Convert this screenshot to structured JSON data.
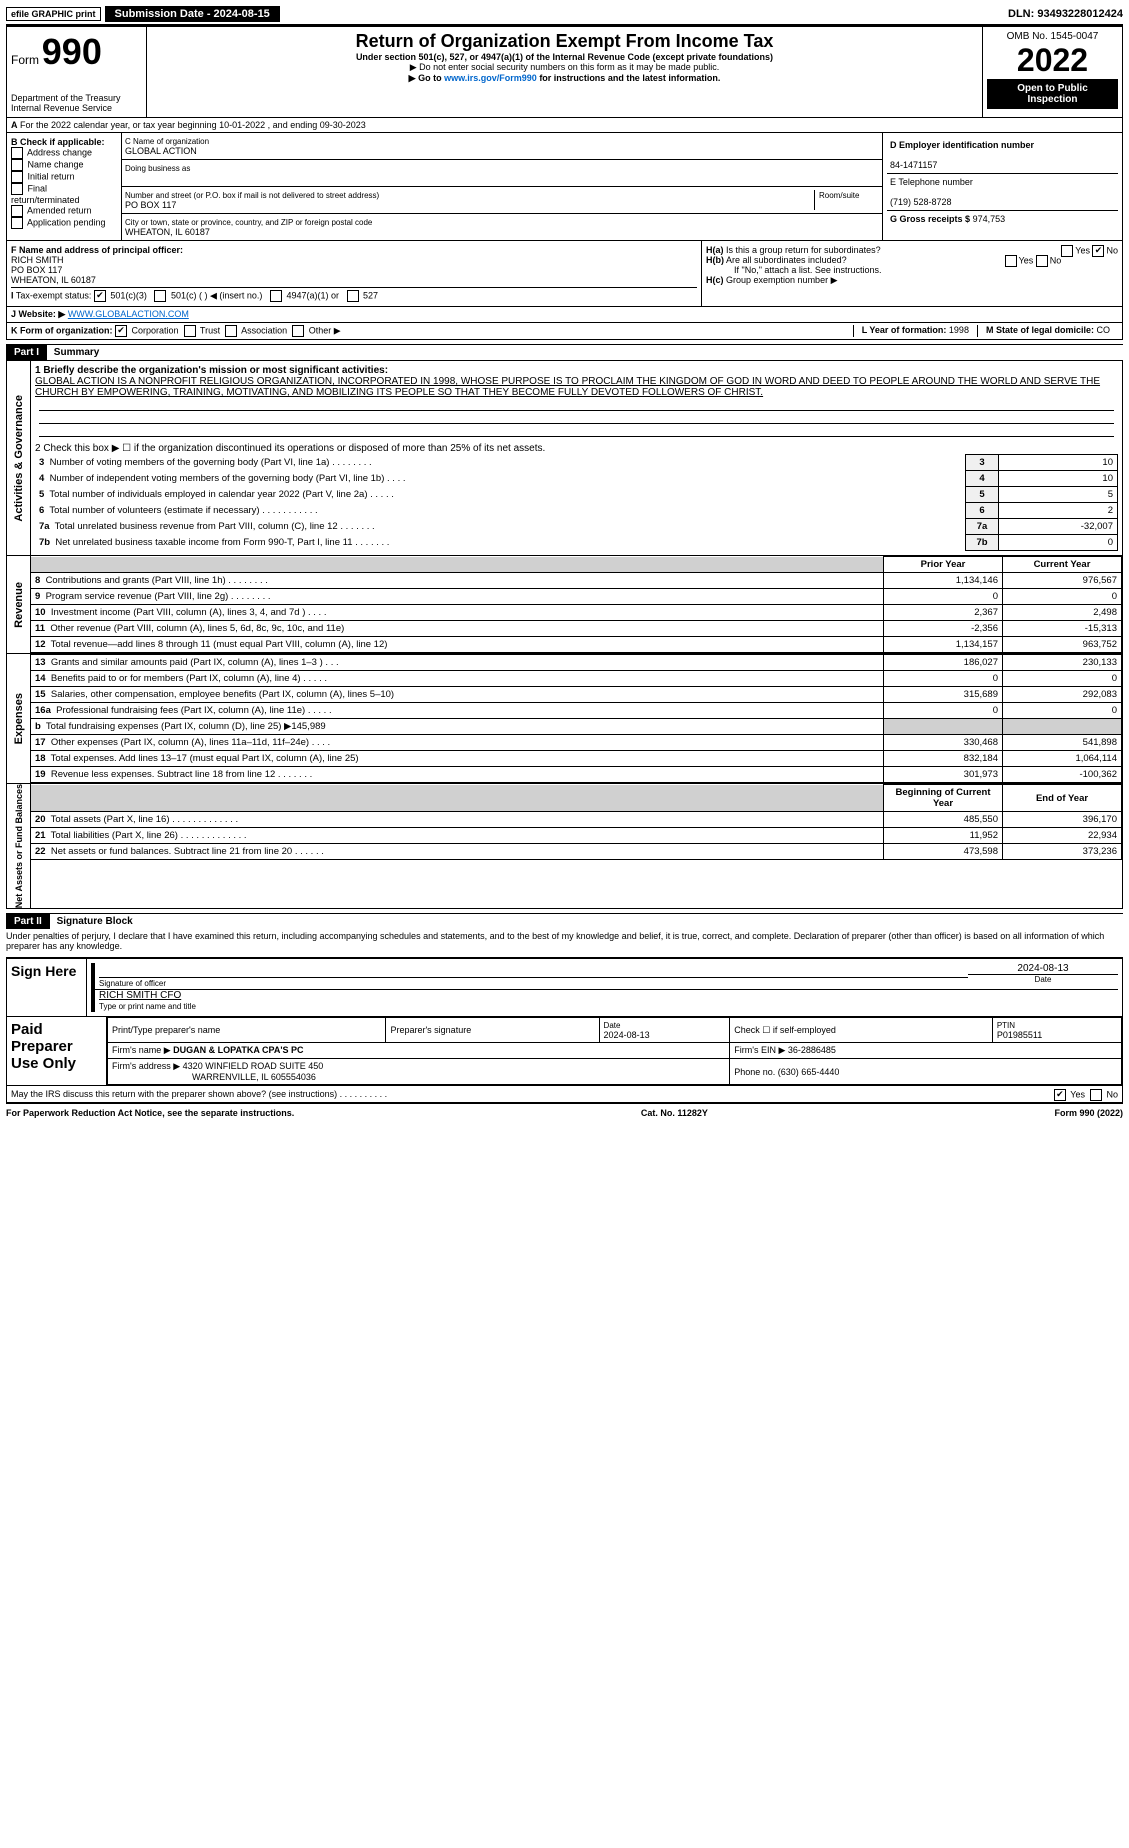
{
  "topbar": {
    "efile": "efile GRAPHIC print",
    "subdate_label": "Submission Date - 2024-08-15",
    "dln": "DLN: 93493228012424"
  },
  "header": {
    "form_prefix": "Form",
    "form_num": "990",
    "dept": "Department of the Treasury",
    "irs": "Internal Revenue Service",
    "title": "Return of Organization Exempt From Income Tax",
    "subtitle": "Under section 501(c), 527, or 4947(a)(1) of the Internal Revenue Code (except private foundations)",
    "note1": "▶ Do not enter social security numbers on this form as it may be made public.",
    "note2_pre": "▶ Go to ",
    "note2_link": "www.irs.gov/Form990",
    "note2_post": " for instructions and the latest information.",
    "omb": "OMB No. 1545-0047",
    "year": "2022",
    "open": "Open to Public Inspection"
  },
  "a": {
    "text": "For the 2022 calendar year, or tax year beginning 10-01-2022    , and ending 09-30-2023"
  },
  "b": {
    "label": "B Check if applicable:",
    "opts": [
      "Address change",
      "Name change",
      "Initial return",
      "Final return/terminated",
      "Amended return",
      "Application pending"
    ]
  },
  "c": {
    "label": "C Name of organization",
    "name": "GLOBAL ACTION",
    "dba_label": "Doing business as",
    "dba": "",
    "addr_label": "Number and street (or P.O. box if mail is not delivered to street address)",
    "room": "Room/suite",
    "addr": "PO BOX 117",
    "city_label": "City or town, state or province, country, and ZIP or foreign postal code",
    "city": "WHEATON, IL  60187"
  },
  "d": {
    "label": "D Employer identification number",
    "val": "84-1471157"
  },
  "e": {
    "label": "E Telephone number",
    "val": "(719) 528-8728"
  },
  "g": {
    "label": "G Gross receipts $",
    "val": "974,753"
  },
  "f": {
    "label": "F Name and address of principal officer:",
    "name": "RICH SMITH",
    "addr1": "PO BOX 117",
    "addr2": "WHEATON, IL  60187"
  },
  "h": {
    "a": "Is this a group return for subordinates?",
    "b": "Are all subordinates included?",
    "bno": "If \"No,\" attach a list. See instructions.",
    "c": "Group exemption number ▶",
    "yes": "Yes",
    "no": "No"
  },
  "i": {
    "label": "Tax-exempt status:",
    "opts": [
      "501(c)(3)",
      "501(c) (  ) ◀ (insert no.)",
      "4947(a)(1) or",
      "527"
    ]
  },
  "j": {
    "label": "Website: ▶",
    "val": "WWW.GLOBALACTION.COM"
  },
  "k": {
    "label": "K Form of organization:",
    "opts": [
      "Corporation",
      "Trust",
      "Association",
      "Other ▶"
    ]
  },
  "l": {
    "label": "L Year of formation:",
    "val": "1998"
  },
  "m": {
    "label": "M State of legal domicile:",
    "val": "CO"
  },
  "part1": {
    "num": "Part I",
    "title": "Summary"
  },
  "mission": {
    "label": "1  Briefly describe the organization's mission or most significant activities:",
    "text": "GLOBAL ACTION IS A NONPROFIT RELIGIOUS ORGANIZATION, INCORPORATED IN 1998, WHOSE PURPOSE IS TO PROCLAIM THE KINGDOM OF GOD IN WORD AND DEED TO PEOPLE AROUND THE WORLD AND SERVE THE CHURCH BY EMPOWERING, TRAINING, MOTIVATING, AND MOBILIZING ITS PEOPLE SO THAT THEY BECOME FULLY DEVOTED FOLLOWERS OF CHRIST."
  },
  "line2": "2  Check this box ▶ ☐  if the organization discontinued its operations or disposed of more than 25% of its net assets.",
  "gov": {
    "vlabel": "Activities & Governance",
    "rows": [
      {
        "n": "3",
        "t": "Number of voting members of the governing body (Part VI, line 1a)   .    .    .    .    .    .    .    .",
        "v": "10"
      },
      {
        "n": "4",
        "t": "Number of independent voting members of the governing body (Part VI, line 1b)   .    .    .    .",
        "v": "10"
      },
      {
        "n": "5",
        "t": "Total number of individuals employed in calendar year 2022 (Part V, line 2a)   .    .    .    .    .",
        "v": "5"
      },
      {
        "n": "6",
        "t": "Total number of volunteers (estimate if necessary)    .    .    .    .    .    .    .    .    .    .    .",
        "v": "2"
      },
      {
        "n": "7a",
        "t": "Total unrelated business revenue from Part VIII, column (C), line 12   .    .    .    .    .    .    .",
        "v": "-32,007"
      },
      {
        "n": "7b",
        "t": "Net unrelated business taxable income from Form 990-T, Part I, line 11   .    .    .    .    .    .    .",
        "v": "0"
      }
    ]
  },
  "rev": {
    "vlabel": "Revenue",
    "h1": "Prior Year",
    "h2": "Current Year",
    "rows": [
      {
        "n": "8",
        "t": "Contributions and grants (Part VIII, line 1h)   .    .    .    .    .    .    .    .",
        "p": "1,134,146",
        "c": "976,567"
      },
      {
        "n": "9",
        "t": "Program service revenue (Part VIII, line 2g)   .    .    .    .    .    .    .    .",
        "p": "0",
        "c": "0"
      },
      {
        "n": "10",
        "t": "Investment income (Part VIII, column (A), lines 3, 4, and 7d )   .    .    .    .",
        "p": "2,367",
        "c": "2,498"
      },
      {
        "n": "11",
        "t": "Other revenue (Part VIII, column (A), lines 5, 6d, 8c, 9c, 10c, and 11e)",
        "p": "-2,356",
        "c": "-15,313"
      },
      {
        "n": "12",
        "t": "Total revenue—add lines 8 through 11 (must equal Part VIII, column (A), line 12)",
        "p": "1,134,157",
        "c": "963,752"
      }
    ]
  },
  "exp": {
    "vlabel": "Expenses",
    "rows": [
      {
        "n": "13",
        "t": "Grants and similar amounts paid (Part IX, column (A), lines 1–3 )   .    .    .",
        "p": "186,027",
        "c": "230,133"
      },
      {
        "n": "14",
        "t": "Benefits paid to or for members (Part IX, column (A), line 4)   .    .    .    .    .",
        "p": "0",
        "c": "0"
      },
      {
        "n": "15",
        "t": "Salaries, other compensation, employee benefits (Part IX, column (A), lines 5–10)",
        "p": "315,689",
        "c": "292,083"
      },
      {
        "n": "16a",
        "t": "Professional fundraising fees (Part IX, column (A), line 11e)   .    .    .    .    .",
        "p": "0",
        "c": "0"
      },
      {
        "n": "b",
        "t": "Total fundraising expenses (Part IX, column (D), line 25) ▶145,989",
        "p": "",
        "c": "",
        "gray": true
      },
      {
        "n": "17",
        "t": "Other expenses (Part IX, column (A), lines 11a–11d, 11f–24e)   .    .    .    .",
        "p": "330,468",
        "c": "541,898"
      },
      {
        "n": "18",
        "t": "Total expenses. Add lines 13–17 (must equal Part IX, column (A), line 25)",
        "p": "832,184",
        "c": "1,064,114"
      },
      {
        "n": "19",
        "t": "Revenue less expenses. Subtract line 18 from line 12   .    .    .    .    .    .    .",
        "p": "301,973",
        "c": "-100,362"
      }
    ]
  },
  "net": {
    "vlabel": "Net Assets or Fund Balances",
    "h1": "Beginning of Current Year",
    "h2": "End of Year",
    "rows": [
      {
        "n": "20",
        "t": "Total assets (Part X, line 16)   .    .    .    .    .    .    .    .    .    .    .    .    .",
        "p": "485,550",
        "c": "396,170"
      },
      {
        "n": "21",
        "t": "Total liabilities (Part X, line 26)   .    .    .    .    .    .    .    .    .    .    .    .    .",
        "p": "11,952",
        "c": "22,934"
      },
      {
        "n": "22",
        "t": "Net assets or fund balances. Subtract line 21 from line 20   .    .    .    .    .    .",
        "p": "473,598",
        "c": "373,236"
      }
    ]
  },
  "part2": {
    "num": "Part II",
    "title": "Signature Block",
    "decl": "Under penalties of perjury, I declare that I have examined this return, including accompanying schedules and statements, and to the best of my knowledge and belief, it is true, correct, and complete. Declaration of preparer (other than officer) is based on all information of which preparer has any knowledge."
  },
  "sign": {
    "label": "Sign Here",
    "sig": "Signature of officer",
    "date": "2024-08-13",
    "name": "RICH SMITH  CFO",
    "nlabel": "Type or print name and title"
  },
  "prep": {
    "label": "Paid Preparer Use Only",
    "h": [
      "Print/Type preparer's name",
      "Preparer's signature",
      "Date",
      "Check ☐ if self-employed",
      "PTIN"
    ],
    "date": "2024-08-13",
    "ptin": "P01985511",
    "firm_name_l": "Firm's name   ▶",
    "firm_name": "DUGAN & LOPATKA CPA'S PC",
    "firm_ein_l": "Firm's EIN ▶",
    "firm_ein": "36-2886485",
    "firm_addr_l": "Firm's address ▶",
    "firm_addr1": "4320 WINFIELD ROAD SUITE 450",
    "firm_addr2": "WARRENVILLE, IL  605554036",
    "phone_l": "Phone no.",
    "phone": "(630) 665-4440"
  },
  "discuss": "May the IRS discuss this return with the preparer shown above? (see instructions)   .    .    .    .    .    .    .    .    .    .",
  "foot": {
    "l": "For Paperwork Reduction Act Notice, see the separate instructions.",
    "m": "Cat. No. 11282Y",
    "r": "Form 990 (2022)"
  }
}
